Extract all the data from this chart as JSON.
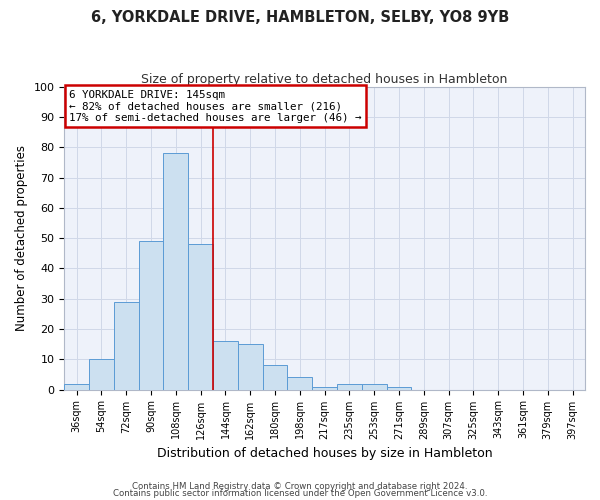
{
  "title": "6, YORKDALE DRIVE, HAMBLETON, SELBY, YO8 9YB",
  "subtitle": "Size of property relative to detached houses in Hambleton",
  "xlabel": "Distribution of detached houses by size in Hambleton",
  "ylabel": "Number of detached properties",
  "categories": [
    "36sqm",
    "54sqm",
    "72sqm",
    "90sqm",
    "108sqm",
    "126sqm",
    "144sqm",
    "162sqm",
    "180sqm",
    "198sqm",
    "217sqm",
    "235sqm",
    "253sqm",
    "271sqm",
    "289sqm",
    "307sqm",
    "325sqm",
    "343sqm",
    "361sqm",
    "379sqm",
    "397sqm"
  ],
  "values": [
    2,
    10,
    29,
    49,
    78,
    48,
    16,
    15,
    8,
    4,
    1,
    2,
    2,
    1,
    0,
    0,
    0,
    0,
    0,
    0,
    0
  ],
  "bar_color": "#cce0f0",
  "bar_edge_color": "#5b9bd5",
  "vline_color": "#cc0000",
  "vline_index": 6,
  "ylim": [
    0,
    100
  ],
  "annotation_box": {
    "text_line1": "6 YORKDALE DRIVE: 145sqm",
    "text_line2": "← 82% of detached houses are smaller (216)",
    "text_line3": "17% of semi-detached houses are larger (46) →",
    "box_color": "#cc0000",
    "fill_color": "#ffffff"
  },
  "footnote1": "Contains HM Land Registry data © Crown copyright and database right 2024.",
  "footnote2": "Contains public sector information licensed under the Open Government Licence v3.0.",
  "grid_color": "#d0d8e8",
  "background_color": "#eef2fa",
  "fig_bg": "#ffffff"
}
